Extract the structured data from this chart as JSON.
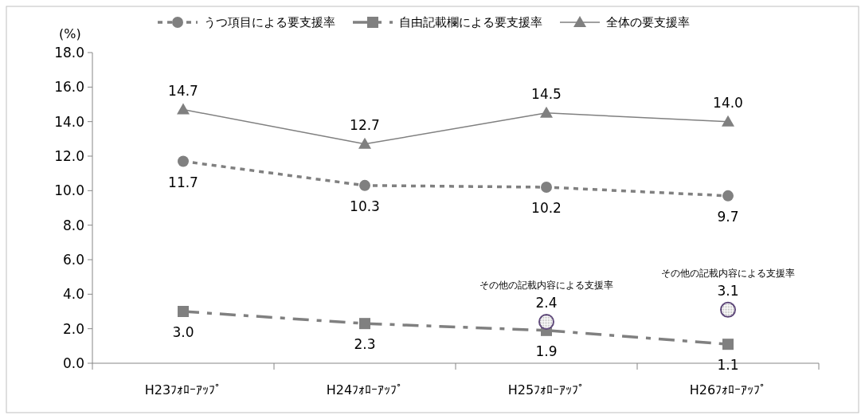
{
  "chart_data": {
    "type": "line",
    "ylabel": "(%)",
    "categories": [
      "H23ﾌｫﾛｰｱｯﾌﾟ",
      "H24ﾌｫﾛｰｱｯﾌﾟ",
      "H25ﾌｫﾛｰｱｯﾌﾟ",
      "H26ﾌｫﾛｰｱｯﾌﾟ"
    ],
    "series": [
      {
        "name": "うつ項目による要支援率",
        "color": "#808080",
        "values": [
          11.7,
          10.3,
          10.2,
          9.7
        ],
        "value_labels": [
          "11.7",
          "10.3",
          "10.2",
          "9.7"
        ],
        "marker": "circle",
        "line_style": "dotted"
      },
      {
        "name": "自由記載欄による要支援率",
        "color": "#808080",
        "values": [
          3.0,
          2.3,
          1.9,
          1.1
        ],
        "value_labels": [
          "3.0",
          "2.3",
          "1.9",
          "1.1"
        ],
        "marker": "square",
        "line_style": "dashed"
      },
      {
        "name": "全体の要支援率",
        "color": "#808080",
        "values": [
          14.7,
          12.7,
          14.5,
          14.0
        ],
        "value_labels": [
          "14.7",
          "12.7",
          "14.5",
          "14.0"
        ],
        "marker": "triangle",
        "line_style": "solid"
      },
      {
        "type": "scatter",
        "color": "#604a7b",
        "values": [
          null,
          null,
          2.4,
          3.1
        ],
        "value_labels": [
          null,
          null,
          "2.4",
          "3.1"
        ],
        "marker": "circle"
      }
    ],
    "annotations": [
      "その他の記載内容による支援率",
      "その他の記載内容による支援率"
    ],
    "ylim": [
      0,
      18
    ],
    "yticks": [
      {
        "value": 0,
        "label": "0.0"
      },
      {
        "value": 2,
        "label": "2.0"
      },
      {
        "value": 4,
        "label": "4.0"
      },
      {
        "value": 6,
        "label": "6.0"
      },
      {
        "value": 8,
        "label": "8.0"
      },
      {
        "value": 10,
        "label": "10.0"
      },
      {
        "value": 12,
        "label": "12.0"
      },
      {
        "value": 14,
        "label": "14.0"
      },
      {
        "value": 16,
        "label": "16.0"
      },
      {
        "value": 18,
        "label": "18.0"
      }
    ],
    "grid": false,
    "legend": "top"
  }
}
